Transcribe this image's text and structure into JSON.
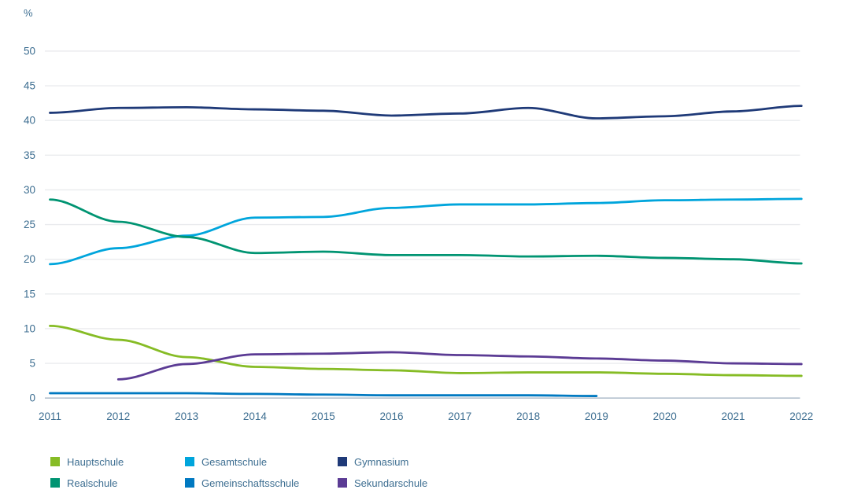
{
  "chart_data": {
    "type": "line",
    "title": "",
    "ylabel": "%",
    "xlabel": "",
    "grid": true,
    "legend_position": "bottom",
    "ylim": [
      0,
      52
    ],
    "y_ticks": [
      0,
      5,
      10,
      15,
      20,
      25,
      30,
      35,
      40,
      45,
      50
    ],
    "x": [
      2011,
      2012,
      2013,
      2014,
      2015,
      2016,
      2017,
      2018,
      2019,
      2020,
      2021,
      2022
    ],
    "series": [
      {
        "name": "Hauptschule",
        "color": "#86BC25",
        "values": [
          10.4,
          8.4,
          5.9,
          4.5,
          4.2,
          4.0,
          3.6,
          3.7,
          3.7,
          3.5,
          3.3,
          3.2
        ]
      },
      {
        "name": "Gesamtschule",
        "color": "#00A5DC",
        "values": [
          19.3,
          21.6,
          23.4,
          26.0,
          26.1,
          27.4,
          27.9,
          27.9,
          28.1,
          28.5,
          28.6,
          28.7
        ]
      },
      {
        "name": "Gymnasium",
        "color": "#1F3A78",
        "values": [
          41.1,
          41.8,
          41.9,
          41.6,
          41.4,
          40.7,
          41.0,
          41.8,
          40.3,
          40.6,
          41.3,
          42.1
        ]
      },
      {
        "name": "Realschule",
        "color": "#009472",
        "values": [
          28.6,
          25.4,
          23.2,
          20.9,
          21.1,
          20.6,
          20.6,
          20.4,
          20.5,
          20.2,
          20.0,
          19.4
        ]
      },
      {
        "name": "Gemeinschaftsschule",
        "color": "#0079C1",
        "values": [
          0.7,
          0.7,
          0.7,
          0.6,
          0.5,
          0.4,
          0.4,
          0.4,
          0.3,
          null,
          null,
          null
        ]
      },
      {
        "name": "Sekundarschule",
        "color": "#5B3B94",
        "values": [
          null,
          2.7,
          4.9,
          6.3,
          6.4,
          6.6,
          6.2,
          6.0,
          5.7,
          5.4,
          5.0,
          4.9
        ]
      }
    ],
    "legend_rows": [
      [
        "Hauptschule",
        "Gesamtschule",
        "Gymnasium"
      ],
      [
        "Realschule",
        "Gemeinschaftsschule",
        "Sekundarschule"
      ]
    ],
    "colors": {
      "tick_text": "#3d6e91",
      "gridline": "#eaebee",
      "zero_line": "#b4c1ce",
      "background": "#ffffff"
    }
  }
}
